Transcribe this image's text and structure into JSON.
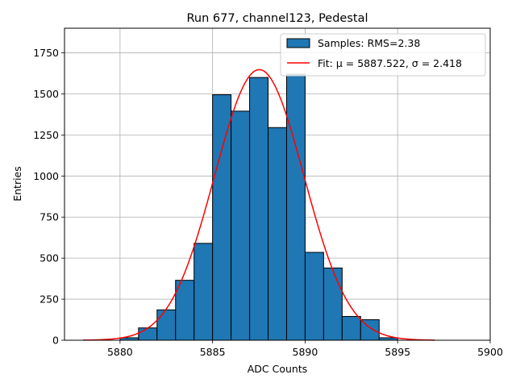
{
  "chart_data": {
    "type": "bar",
    "title": "Run 677, channel123, Pedestal",
    "xlabel": "ADC Counts",
    "ylabel": "Entries",
    "xlim": [
      5877,
      5900
    ],
    "ylim": [
      0,
      1900
    ],
    "xticks": [
      5880,
      5885,
      5890,
      5895,
      5900
    ],
    "yticks": [
      0,
      250,
      500,
      750,
      1000,
      1250,
      1500,
      1750
    ],
    "grid": true,
    "legend_position": "top-right",
    "histogram": {
      "name": "Samples: RMS=2.38",
      "color": "#1f77b4",
      "edgecolor": "#000000",
      "bin_edges": [
        5880,
        5881,
        5882,
        5883,
        5884,
        5885,
        5886,
        5887,
        5888,
        5889,
        5890,
        5891,
        5892,
        5893,
        5894,
        5895
      ],
      "counts": [
        15,
        75,
        185,
        365,
        590,
        1495,
        1395,
        1600,
        1295,
        1620,
        535,
        440,
        145,
        125,
        15
      ]
    },
    "fit": {
      "name": "Fit: μ = 5887.522, σ = 2.418",
      "color": "#ff0000",
      "mu": 5887.522,
      "sigma": 2.418,
      "amplitude": 1648,
      "x_range": [
        5878,
        5897
      ]
    }
  }
}
